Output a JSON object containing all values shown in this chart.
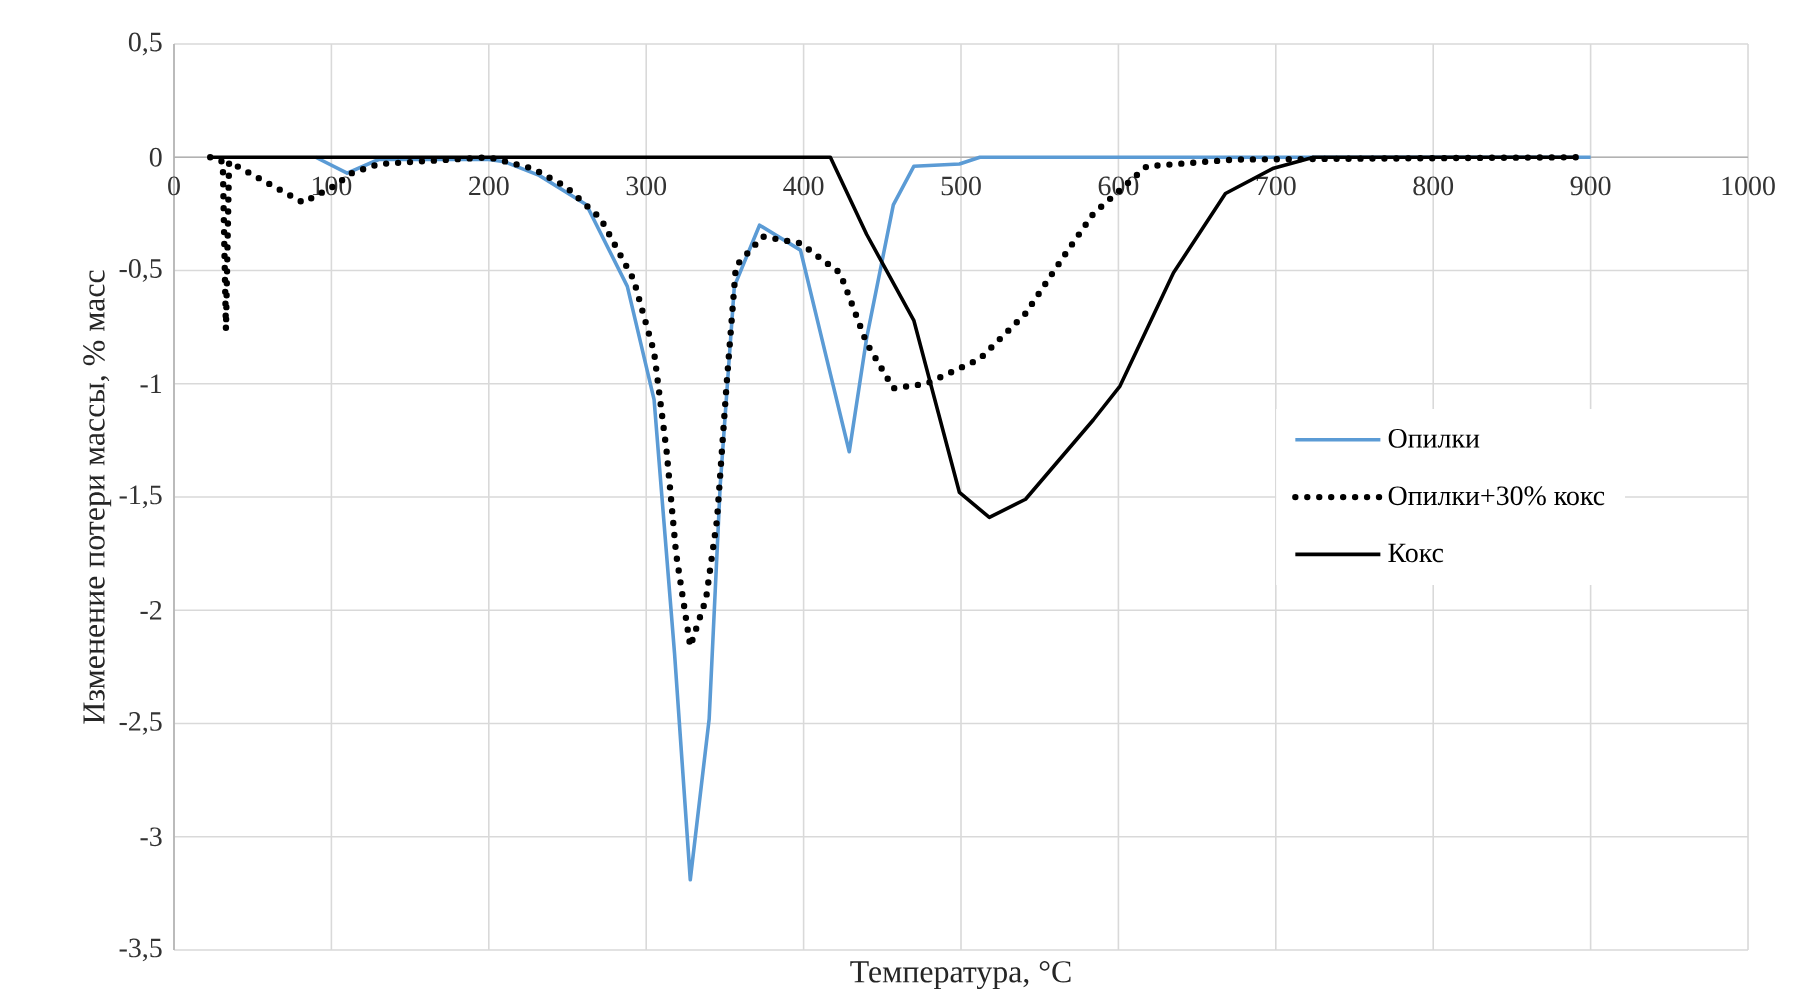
{
  "chart_data": {
    "type": "line",
    "xlabel": "Температура,  °C",
    "ylabel": "Изменение потери массы, % масс",
    "xlim": [
      0,
      1000
    ],
    "xticks": [
      0,
      100,
      200,
      300,
      400,
      500,
      600,
      700,
      800,
      900,
      1000
    ],
    "ylim": [
      -3.5,
      0.5
    ],
    "yticks": [
      {
        "value": -3.5,
        "label": "-3,5"
      },
      -3,
      {
        "value": -2.5,
        "label": "-2,5"
      },
      -2,
      {
        "value": -1.5,
        "label": "-1,5"
      },
      -1,
      {
        "value": -0.5,
        "label": "-0,5"
      },
      0,
      {
        "value": 0.5,
        "label": "0,5"
      }
    ],
    "grid": true,
    "legend": "right",
    "marker": "none",
    "series": [
      {
        "name": "Опилки",
        "color": "#5b9bd5",
        "line_style": "solid",
        "x": [
          90,
          110,
          130,
          200,
          210,
          232,
          262,
          288,
          305,
          318,
          328,
          340,
          347,
          356,
          372,
          398,
          414,
          429,
          440,
          457,
          470,
          499,
          512,
          900
        ],
        "values": [
          0,
          -0.07,
          -0.01,
          -0.01,
          -0.02,
          -0.08,
          -0.21,
          -0.57,
          -1.07,
          -2.19,
          -3.19,
          -2.48,
          -1.45,
          -0.57,
          -0.3,
          -0.41,
          -0.87,
          -1.3,
          -0.8,
          -0.21,
          -0.04,
          -0.03,
          0,
          0
        ]
      },
      {
        "name": "Опилки+30% кокс",
        "color": "#000000",
        "line_style": "dotted",
        "x": [
          23,
          31,
          32,
          33,
          35,
          82,
          101,
          113,
          130,
          200,
          228,
          249,
          271,
          292,
          305,
          313,
          319,
          328,
          338,
          345,
          351,
          357,
          374,
          398,
          423,
          427,
          440,
          457,
          478,
          512,
          541,
          567,
          584,
          618,
          674,
          891
        ],
        "values": [
          0,
          -0.02,
          -0.4,
          -0.76,
          -0.02,
          -0.2,
          -0.13,
          -0.07,
          -0.03,
          0,
          -0.05,
          -0.13,
          -0.27,
          -0.54,
          -0.86,
          -1.3,
          -1.75,
          -2.16,
          -1.95,
          -1.6,
          -1.01,
          -0.48,
          -0.35,
          -0.38,
          -0.51,
          -0.58,
          -0.82,
          -1.02,
          -1.0,
          -0.89,
          -0.69,
          -0.42,
          -0.25,
          -0.04,
          -0.01,
          0
        ]
      },
      {
        "name": "Кокс",
        "color": "#000000",
        "line_style": "solid",
        "x": [
          23,
          417,
          440,
          470,
          499,
          518,
          541,
          584,
          601,
          635,
          668,
          698,
          724,
          891
        ],
        "values": [
          0,
          0,
          -0.34,
          -0.72,
          -1.48,
          -1.59,
          -1.51,
          -1.16,
          -1.01,
          -0.51,
          -0.16,
          -0.05,
          0,
          0
        ]
      }
    ]
  }
}
